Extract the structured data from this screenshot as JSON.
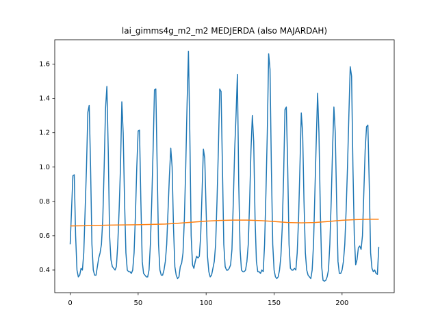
{
  "chart_data": {
    "type": "line",
    "title": "lai_gimms4g_m2_m2 MEDJERDA (also MAJARDAH)",
    "xlim": [
      -11.35,
      238.35
    ],
    "ylim": [
      0.268,
      1.742
    ],
    "xticks": [
      0,
      50,
      100,
      150,
      200
    ],
    "yticks": [
      0.4,
      0.6,
      0.8,
      {
        "value": 1,
        "label": "1.0"
      },
      1.2,
      1.4,
      1.6
    ],
    "grid": false,
    "series": [
      {
        "color": "#1f77b4",
        "x": [
          0,
          1,
          2,
          3,
          4,
          5,
          6,
          7,
          8,
          9,
          10,
          11,
          12,
          13,
          14,
          15,
          16,
          17,
          18,
          19,
          20,
          21,
          22,
          23,
          24,
          25,
          26,
          27,
          28,
          29,
          30,
          31,
          32,
          33,
          34,
          35,
          36,
          37,
          38,
          39,
          40,
          41,
          42,
          43,
          44,
          45,
          46,
          47,
          48,
          49,
          50,
          51,
          52,
          53,
          54,
          55,
          56,
          57,
          58,
          59,
          60,
          61,
          62,
          63,
          64,
          65,
          66,
          67,
          68,
          69,
          70,
          71,
          72,
          73,
          74,
          75,
          76,
          77,
          78,
          79,
          80,
          81,
          82,
          83,
          84,
          85,
          86,
          87,
          88,
          89,
          90,
          91,
          92,
          93,
          94,
          95,
          96,
          97,
          98,
          99,
          100,
          101,
          102,
          103,
          104,
          105,
          106,
          107,
          108,
          109,
          110,
          111,
          112,
          113,
          114,
          115,
          116,
          117,
          118,
          119,
          120,
          121,
          122,
          123,
          124,
          125,
          126,
          127,
          128,
          129,
          130,
          131,
          132,
          133,
          134,
          135,
          136,
          137,
          138,
          139,
          140,
          141,
          142,
          143,
          144,
          145,
          146,
          147,
          148,
          149,
          150,
          151,
          152,
          153,
          154,
          155,
          156,
          157,
          158,
          159,
          160,
          161,
          162,
          163,
          164,
          165,
          166,
          167,
          168,
          169,
          170,
          171,
          172,
          173,
          174,
          175,
          176,
          177,
          178,
          179,
          180,
          181,
          182,
          183,
          184,
          185,
          186,
          187,
          188,
          189,
          190,
          191,
          192,
          193,
          194,
          195,
          196,
          197,
          198,
          199,
          200,
          201,
          202,
          203,
          204,
          205,
          206,
          207,
          208,
          209,
          210,
          211,
          212,
          213,
          214,
          215,
          216,
          217,
          218,
          219,
          220,
          221,
          222,
          223,
          224,
          225,
          226,
          227
        ],
        "values": [
          0.55,
          0.75,
          0.95,
          0.955,
          0.6,
          0.4,
          0.36,
          0.37,
          0.41,
          0.4,
          0.5,
          0.75,
          1.0,
          1.32,
          1.36,
          1.0,
          0.55,
          0.4,
          0.37,
          0.37,
          0.42,
          0.47,
          0.5,
          0.55,
          0.7,
          1.0,
          1.34,
          1.47,
          1.1,
          0.6,
          0.46,
          0.42,
          0.41,
          0.4,
          0.42,
          0.55,
          0.75,
          1.0,
          1.38,
          1.2,
          0.8,
          0.5,
          0.4,
          0.39,
          0.39,
          0.38,
          0.4,
          0.5,
          0.72,
          1.0,
          1.21,
          1.215,
          0.8,
          0.45,
          0.38,
          0.37,
          0.36,
          0.36,
          0.4,
          0.55,
          0.8,
          1.1,
          1.45,
          1.455,
          1.0,
          0.55,
          0.4,
          0.37,
          0.37,
          0.4,
          0.45,
          0.55,
          0.75,
          0.95,
          1.11,
          1.0,
          0.65,
          0.42,
          0.37,
          0.35,
          0.36,
          0.42,
          0.44,
          0.5,
          0.7,
          1.0,
          1.37,
          1.675,
          1.2,
          0.6,
          0.43,
          0.41,
          0.45,
          0.48,
          0.47,
          0.48,
          0.6,
          0.85,
          1.105,
          1.05,
          0.75,
          0.48,
          0.39,
          0.36,
          0.37,
          0.41,
          0.45,
          0.55,
          0.8,
          1.1,
          1.455,
          1.44,
          1.0,
          0.55,
          0.42,
          0.4,
          0.4,
          0.41,
          0.43,
          0.52,
          0.8,
          1.1,
          1.3,
          1.54,
          0.9,
          0.52,
          0.4,
          0.39,
          0.39,
          0.4,
          0.45,
          0.55,
          0.8,
          1.1,
          1.3,
          1.15,
          0.7,
          0.45,
          0.39,
          0.39,
          0.38,
          0.4,
          0.39,
          0.55,
          0.85,
          1.2,
          1.66,
          1.57,
          1.0,
          0.55,
          0.4,
          0.36,
          0.35,
          0.36,
          0.4,
          0.48,
          0.65,
          0.95,
          1.335,
          1.35,
          1.0,
          0.55,
          0.41,
          0.4,
          0.4,
          0.41,
          0.4,
          0.5,
          0.7,
          1.0,
          1.315,
          1.2,
          0.8,
          0.5,
          0.4,
          0.37,
          0.36,
          0.35,
          0.4,
          0.55,
          0.85,
          1.15,
          1.43,
          1.2,
          0.75,
          0.42,
          0.34,
          0.335,
          0.34,
          0.36,
          0.4,
          0.55,
          0.8,
          1.1,
          1.35,
          1.2,
          0.8,
          0.45,
          0.38,
          0.38,
          0.4,
          0.45,
          0.55,
          0.75,
          1.0,
          1.3,
          1.585,
          1.53,
          1.0,
          0.6,
          0.43,
          0.46,
          0.53,
          0.54,
          0.52,
          0.6,
          0.85,
          1.1,
          1.235,
          1.245,
          0.9,
          0.5,
          0.41,
          0.39,
          0.4,
          0.38,
          0.375,
          0.535
        ]
      },
      {
        "color": "#ff7f0e",
        "x": [
          0,
          10,
          20,
          30,
          40,
          50,
          60,
          70,
          80,
          90,
          100,
          110,
          120,
          130,
          140,
          150,
          160,
          170,
          180,
          190,
          200,
          210,
          220,
          227
        ],
        "values": [
          0.657,
          0.658,
          0.66,
          0.662,
          0.663,
          0.664,
          0.666,
          0.668,
          0.673,
          0.679,
          0.685,
          0.689,
          0.691,
          0.691,
          0.688,
          0.683,
          0.677,
          0.675,
          0.677,
          0.683,
          0.69,
          0.694,
          0.696,
          0.696
        ]
      }
    ]
  }
}
